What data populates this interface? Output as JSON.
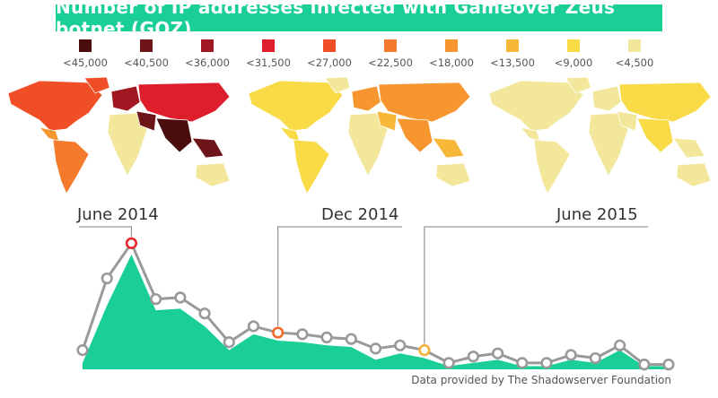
{
  "title": "Number of IP addresses infected with Gameover Zeus botnet (GOZ)",
  "legend": [
    {
      "label": "<45,000",
      "color": "#4a0c0d"
    },
    {
      "label": "<40,500",
      "color": "#6e1519"
    },
    {
      "label": "<36,000",
      "color": "#a11722"
    },
    {
      "label": "<31,500",
      "color": "#df1e2d"
    },
    {
      "label": "<27,000",
      "color": "#ef4e27"
    },
    {
      "label": "<22,500",
      "color": "#f47b2c"
    },
    {
      "label": "<18,000",
      "color": "#f7952f"
    },
    {
      "label": "<13,500",
      "color": "#f7b839"
    },
    {
      "label": "<9,000",
      "color": "#f9da47"
    },
    {
      "label": "<4,500",
      "color": "#f3e79b"
    }
  ],
  "maps": [
    {
      "period": "June 2014"
    },
    {
      "period": "Dec 2014"
    },
    {
      "period": "June 2015"
    }
  ],
  "annotations": [
    "June 2014",
    "Dec 2014",
    "June 2015"
  ],
  "credit": "Data provided by The Shadowserver Foundation",
  "chart_data": {
    "type": "line",
    "xlabel": "",
    "ylabel": "",
    "highlight_colors": {
      "June 2014": "#e8262c",
      "Dec 2014": "#f26a2a",
      "June 2015": "#f7b13b"
    },
    "colors": {
      "line": "#999999",
      "area": "#19cf97",
      "marker_fill": "#ffffff"
    },
    "series": [
      {
        "values": [
          12,
          57,
          79,
          44,
          45,
          35,
          17,
          27,
          23,
          22,
          20,
          19,
          13,
          15,
          12,
          4,
          8,
          10,
          4,
          4,
          9,
          7,
          15,
          3,
          3
        ]
      }
    ],
    "area_values": [
      4,
      40,
      72,
      37,
      38,
      27,
      12,
      22,
      18,
      17,
      15,
      14,
      6,
      10,
      7,
      2,
      4,
      6,
      2,
      2,
      6,
      4,
      12,
      2,
      2
    ],
    "highlight_indices": [
      2,
      8,
      14
    ]
  }
}
